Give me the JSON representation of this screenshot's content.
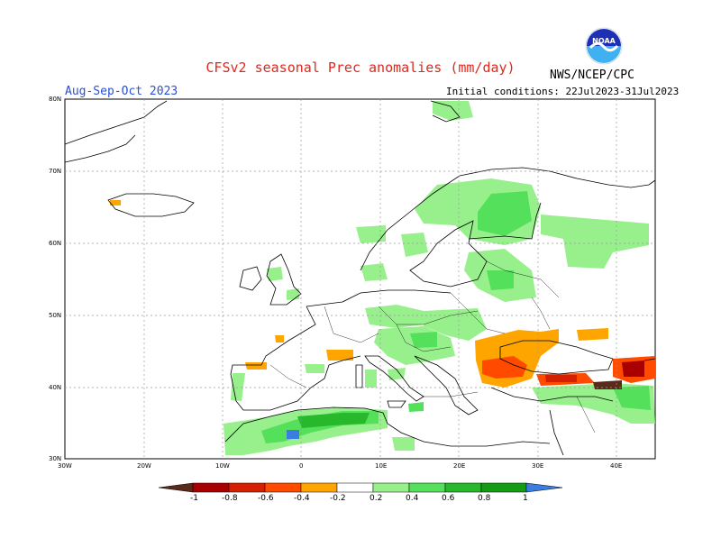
{
  "header": {
    "title": "CFSv2 seasonal Prec anomalies (mm/day)",
    "org": "NWS/NCEP/CPC",
    "logo_text": "NOAA",
    "season": "Aug-Sep-Oct 2023",
    "initial_conditions": "Initial conditions: 22Jul2023-31Jul2023"
  },
  "axes": {
    "lat_labels": [
      "80N",
      "70N",
      "60N",
      "50N",
      "40N",
      "30N"
    ],
    "lon_labels": [
      "30W",
      "20W",
      "10W",
      "0",
      "10E",
      "20E",
      "30E",
      "40E"
    ]
  },
  "colorbar": {
    "labels": [
      "-1",
      "-0.8",
      "-0.6",
      "-0.4",
      "-0.2",
      "0.2",
      "0.4",
      "0.6",
      "0.8",
      "1"
    ],
    "colors": [
      "#5a2a1a",
      "#a80000",
      "#d42000",
      "#ff4a00",
      "#ffa500",
      "#ffffff",
      "#98f08c",
      "#54e05a",
      "#28b82c",
      "#149c14",
      "#3b7de0"
    ]
  },
  "colors": {
    "title": "#e0281e",
    "season": "#2b4fd8",
    "grid": "#9a9a9a"
  }
}
